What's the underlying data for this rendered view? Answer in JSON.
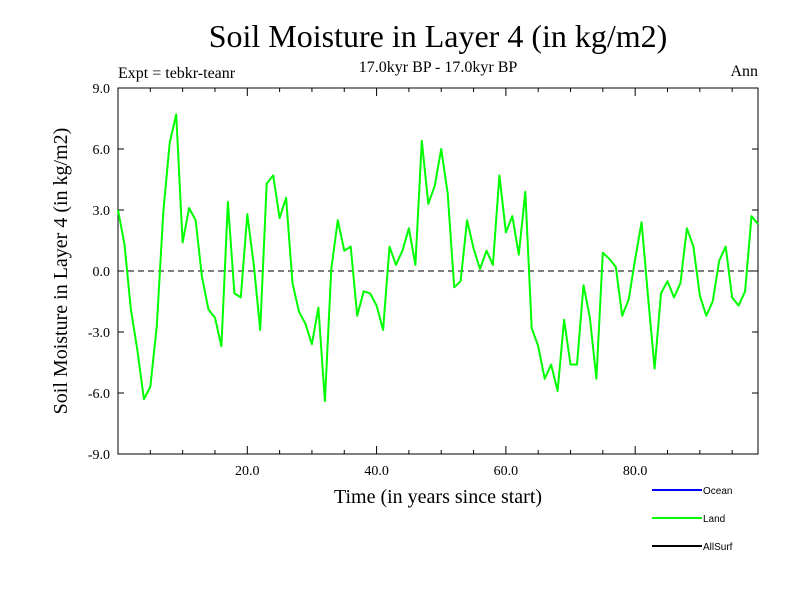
{
  "chart_data": {
    "type": "line",
    "title": "Soil Moisture in Layer 4 (in kg/m2)",
    "subtitle": "17.0kyr BP - 17.0kyr BP",
    "left_label": "Expt = tebkr-teanr",
    "right_label": "Ann",
    "xlabel": "Time (in years since start)",
    "ylabel": "Soil Moisture in Layer 4 (in kg/m2)",
    "xlim": [
      0,
      99
    ],
    "ylim": [
      -9,
      9
    ],
    "x_ticks": [
      {
        "value": 20,
        "label": "20.0"
      },
      {
        "value": 40,
        "label": "40.0"
      },
      {
        "value": 60,
        "label": "60.0"
      },
      {
        "value": 80,
        "label": "80.0"
      }
    ],
    "y_ticks": [
      {
        "value": 9,
        "label": "9.0"
      },
      {
        "value": 6,
        "label": "6.0"
      },
      {
        "value": 3,
        "label": "3.0"
      },
      {
        "value": 0,
        "label": "0.0"
      },
      {
        "value": -3,
        "label": "-3.0"
      },
      {
        "value": -6,
        "label": "-6.0"
      },
      {
        "value": -9,
        "label": "-9.0"
      }
    ],
    "zero_line": true,
    "legend": [
      {
        "name": "Ocean",
        "color": "#0000ff"
      },
      {
        "name": "Land",
        "color": "#00ff00"
      },
      {
        "name": "AllSurf",
        "color": "#000000"
      }
    ],
    "series": [
      {
        "name": "Land",
        "color": "#00ff00",
        "x": [
          0,
          1,
          2,
          3,
          4,
          5,
          6,
          7,
          8,
          9,
          10,
          11,
          12,
          13,
          14,
          15,
          16,
          17,
          18,
          19,
          20,
          21,
          22,
          23,
          24,
          25,
          26,
          27,
          28,
          29,
          30,
          31,
          32,
          33,
          34,
          35,
          36,
          37,
          38,
          39,
          40,
          41,
          42,
          43,
          44,
          45,
          46,
          47,
          48,
          49,
          50,
          51,
          52,
          53,
          54,
          55,
          56,
          57,
          58,
          59,
          60,
          61,
          62,
          63,
          64,
          65,
          66,
          67,
          68,
          69,
          70,
          71,
          72,
          73,
          74,
          75,
          76,
          77,
          78,
          79,
          80,
          81,
          82,
          83,
          84,
          85,
          86,
          87,
          88,
          89,
          90,
          91,
          92,
          93,
          94,
          95,
          96,
          97,
          98,
          99
        ],
        "values": [
          3.0,
          1.3,
          -1.9,
          -3.9,
          -6.3,
          -5.7,
          -2.7,
          2.9,
          6.3,
          7.7,
          1.4,
          3.1,
          2.5,
          -0.3,
          -1.9,
          -2.3,
          -3.7,
          3.4,
          -1.1,
          -1.3,
          2.8,
          0.3,
          -2.9,
          4.3,
          4.7,
          2.6,
          3.6,
          -0.6,
          -2.0,
          -2.6,
          -3.6,
          -1.8,
          -6.4,
          0.1,
          2.5,
          1.0,
          1.2,
          -2.2,
          -1.0,
          -1.1,
          -1.7,
          -2.9,
          1.2,
          0.3,
          1.0,
          2.1,
          0.3,
          6.4,
          3.3,
          4.2,
          6.0,
          3.8,
          -0.8,
          -0.5,
          2.5,
          1.1,
          0.1,
          1.0,
          0.3,
          4.7,
          1.9,
          2.7,
          0.8,
          3.9,
          -2.8,
          -3.7,
          -5.3,
          -4.6,
          -5.9,
          -2.4,
          -4.6,
          -4.6,
          -0.7,
          -2.3,
          -5.3,
          0.9,
          0.6,
          0.2,
          -2.2,
          -1.4,
          0.6,
          2.4,
          -1.3,
          -4.8,
          -1.1,
          -0.5,
          -1.3,
          -0.6,
          2.1,
          1.2,
          -1.2,
          -2.2,
          -1.5,
          0.5,
          1.2,
          -1.3,
          -1.7,
          -1.0,
          2.7,
          2.3
        ]
      }
    ]
  }
}
